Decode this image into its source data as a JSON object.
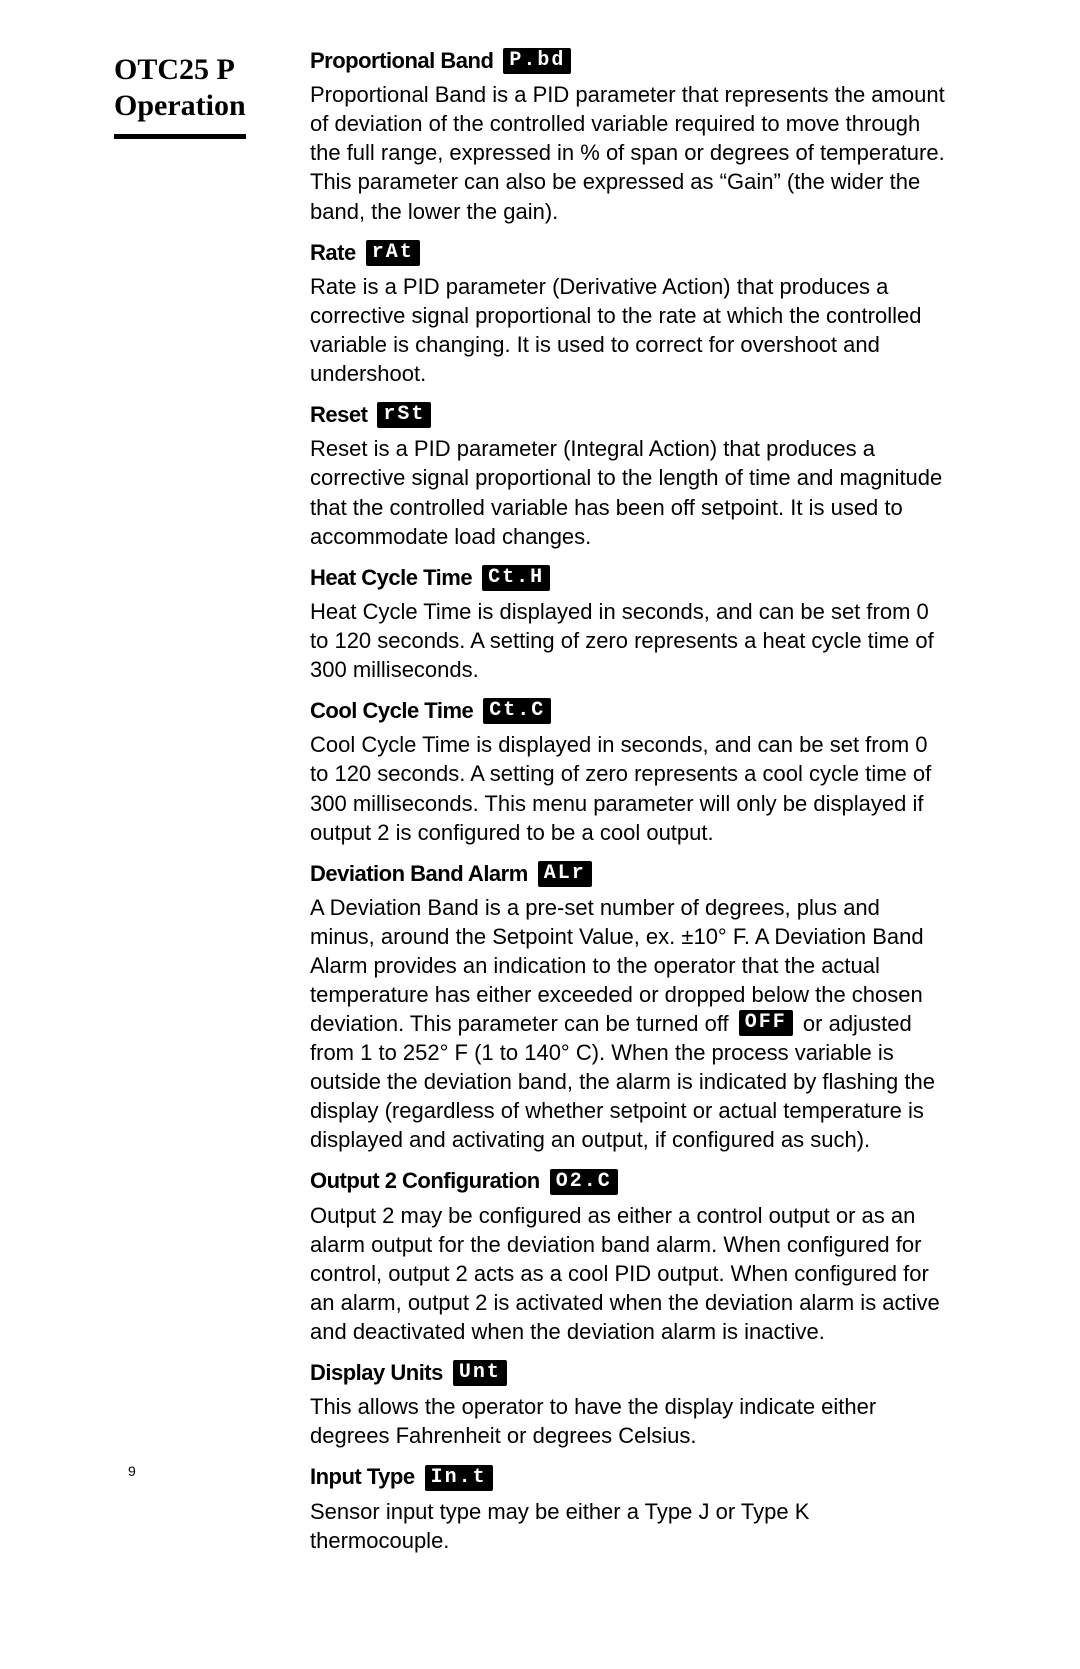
{
  "page_number": "9",
  "side_title_line1": "OTC25 P",
  "side_title_line2": "Operation",
  "colors": {
    "background": "#ffffff",
    "text": "#000000",
    "badge_bg": "#000000",
    "badge_fg": "#ffffff",
    "rule": "#000000"
  },
  "typography": {
    "side_title_fontsize_pt": 22,
    "heading_fontsize_pt": 17,
    "body_fontsize_pt": 16,
    "badge_fontsize_pt": 15
  },
  "params": {
    "pbd": {
      "title": "Proportional Band",
      "code": "P.bd",
      "body": "Proportional Band is a PID parameter that represents the amount of deviation of the controlled variable required to move through the full range, expressed in % of span or degrees of temperature. This parameter can also be expressed as “Gain” (the wider the band, the lower the gain)."
    },
    "rate": {
      "title": "Rate",
      "code": "rAt",
      "body": "Rate is a PID parameter (Derivative Action) that produces a corrective signal proportional to the rate at which the controlled variable is changing. It is used to correct for overshoot and undershoot."
    },
    "reset": {
      "title": "Reset",
      "code": "rSt",
      "body": "Reset is a PID parameter (Integral Action) that produces a corrective signal proportional to the length of time and magnitude that the controlled variable has been off setpoint. It is used to accommodate load changes."
    },
    "heat": {
      "title": "Heat Cycle Time",
      "code": "Ct.H",
      "body": "Heat Cycle Time is displayed in seconds, and can be set from 0 to 120 seconds. A setting of zero represents a heat cycle time of 300 milliseconds."
    },
    "cool": {
      "title": "Cool Cycle Time",
      "code": "Ct.C",
      "body": "Cool Cycle Time is displayed in seconds, and can be set from 0 to 120 seconds. A setting of zero represents a cool cycle time of 300 milliseconds. This menu parameter will only be displayed if output 2 is configured to be a cool output."
    },
    "alarm": {
      "title": "Deviation Band Alarm",
      "code": "ALr",
      "body_pre": "A Deviation Band is a pre-set number of degrees, plus and minus, around the Setpoint Value, ex. ±10° F. A Deviation Band Alarm provides an indication to the operator that the actual temperature has either exceeded or dropped below the chosen deviation. This parameter can be turned off ",
      "off_code": "OFF",
      "body_post": " or adjusted from 1 to 252° F (1 to 140° C). When the process variable is outside the deviation band, the alarm is indicated by flashing the display (regardless of whether setpoint or actual temperature is displayed and activating an output, if configured as such)."
    },
    "out2": {
      "title": "Output 2 Configuration",
      "code": "O2.C",
      "body": "Output 2 may be configured as either a control output or as an alarm output for the deviation band alarm. When configured for control, output 2 acts as a cool PID output. When configured for an alarm, output 2 is activated when the deviation alarm is active and deactivated when the deviation alarm is inactive."
    },
    "units": {
      "title": "Display Units",
      "code": "Unt",
      "body": "This allows the operator to have the display indicate either degrees Fahrenheit or degrees Celsius."
    },
    "input": {
      "title": "Input Type",
      "code": "In.t",
      "body": "Sensor input type may be either a Type J or Type K thermocouple."
    }
  }
}
